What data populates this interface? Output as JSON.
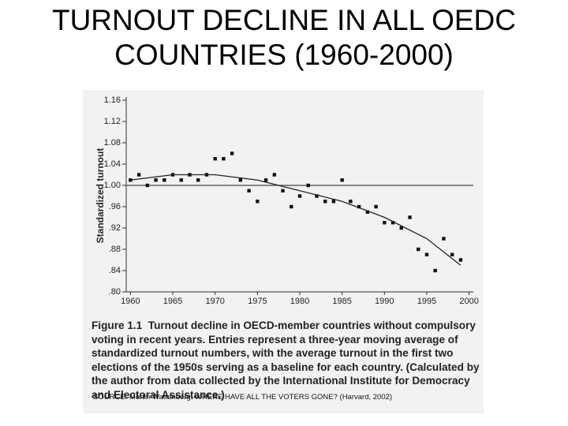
{
  "title": "TURNOUT DECLINE IN ALL OEDC COUNTRIES (1960-2000)",
  "chart_data": {
    "type": "scatter",
    "y_label": "Standardized turnout",
    "x": [
      1960,
      1961,
      1962,
      1963,
      1964,
      1965,
      1966,
      1967,
      1968,
      1969,
      1970,
      1971,
      1972,
      1973,
      1974,
      1975,
      1976,
      1977,
      1978,
      1979,
      1980,
      1981,
      1982,
      1983,
      1984,
      1985,
      1986,
      1987,
      1988,
      1989,
      1990,
      1991,
      1992,
      1993,
      1994,
      1995,
      1996,
      1997,
      1998,
      1999
    ],
    "series": [
      {
        "color": "#111111",
        "values": [
          1.01,
          1.02,
          1.0,
          1.01,
          1.01,
          1.02,
          1.01,
          1.02,
          1.01,
          1.02,
          1.05,
          1.05,
          1.06,
          1.01,
          0.99,
          0.97,
          1.01,
          1.02,
          0.99,
          0.96,
          0.98,
          1.0,
          0.98,
          0.97,
          0.97,
          1.01,
          0.97,
          0.96,
          0.95,
          0.96,
          0.93,
          0.93,
          0.92,
          0.94,
          0.88,
          0.87,
          0.84,
          0.9,
          0.87,
          0.86
        ]
      }
    ],
    "trend": {
      "color": "#222222",
      "x": [
        1960,
        1965,
        1970,
        1975,
        1980,
        1985,
        1990,
        1995,
        1999
      ],
      "values": [
        1.01,
        1.02,
        1.02,
        1.01,
        0.99,
        0.97,
        0.94,
        0.9,
        0.85
      ]
    },
    "reference_line": 1,
    "xlim": [
      1959.5,
      2000.5
    ],
    "ylim": [
      0.8,
      1.16
    ],
    "xticks": [
      1960,
      1965,
      1970,
      1975,
      1980,
      1985,
      1990,
      1995,
      2000
    ],
    "yticks": [
      {
        "value": 1.16,
        "label": "1.16"
      },
      {
        "value": 1.12,
        "label": "1.12"
      },
      {
        "value": 1.08,
        "label": "1.08"
      },
      {
        "value": 1.04,
        "label": "1.04"
      },
      {
        "value": 1,
        "label": "1.00"
      },
      {
        "value": 0.96,
        "label": ".96"
      },
      {
        "value": 0.92,
        "label": ".92"
      },
      {
        "value": 0.88,
        "label": ".88"
      },
      {
        "value": 0.84,
        "label": ".84"
      },
      {
        "value": 0.8,
        "label": ".80"
      }
    ],
    "figure_label": "Figure 1.1",
    "caption": "Turnout decline in OECD-member countries without compulsory voting in recent years. Entries represent a three-year moving average of standardized turnout numbers, with the average turnout in the first two elections of the 1950s serving as a baseline for each country. (Calculated by the author from data collected by the International Institute for Democracy and Electoral Assistance.)",
    "source": "SOURCE:  Martin Wattenberg, WHERE HAVE ALL THE VOTERS GONE? (Harvard, 2002)"
  }
}
